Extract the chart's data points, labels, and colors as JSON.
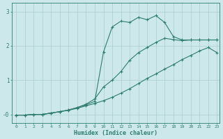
{
  "xlabel": "Humidex (Indice chaleur)",
  "background_color": "#cce8ea",
  "line_color": "#2e7d6e",
  "grid_color": "#aacdd0",
  "xlim": [
    -0.5,
    23.3
  ],
  "ylim": [
    -0.25,
    3.25
  ],
  "xticks": [
    0,
    1,
    2,
    3,
    4,
    5,
    6,
    7,
    8,
    9,
    10,
    11,
    12,
    13,
    14,
    15,
    16,
    17,
    18,
    19,
    20,
    21,
    22,
    23
  ],
  "yticks": [
    0,
    1,
    2,
    3
  ],
  "ytick_labels": [
    "-0",
    "1",
    "2",
    "3"
  ],
  "line1_x": [
    0,
    1,
    2,
    3,
    4,
    5,
    6,
    7,
    8,
    9,
    10,
    11,
    12,
    13,
    14,
    15,
    16,
    17,
    18,
    19,
    20,
    21,
    22,
    23
  ],
  "line1_y": [
    -0.02,
    -0.02,
    0.0,
    0.0,
    0.04,
    0.08,
    0.12,
    0.18,
    0.25,
    0.32,
    0.4,
    0.5,
    0.62,
    0.75,
    0.9,
    1.05,
    1.18,
    1.32,
    1.45,
    1.6,
    1.72,
    1.85,
    1.95,
    1.8
  ],
  "line2_x": [
    0,
    1,
    2,
    3,
    4,
    5,
    6,
    7,
    8,
    9,
    10,
    11,
    12,
    13,
    14,
    15,
    16,
    17,
    18,
    19,
    20,
    21,
    22,
    23
  ],
  "line2_y": [
    -0.02,
    -0.02,
    0.0,
    0.0,
    0.04,
    0.08,
    0.13,
    0.2,
    0.28,
    0.38,
    1.82,
    2.55,
    2.72,
    2.68,
    2.83,
    2.76,
    2.88,
    2.68,
    2.27,
    2.17,
    2.17,
    2.17,
    2.17,
    2.17
  ],
  "line3_x": [
    0,
    1,
    2,
    3,
    4,
    5,
    6,
    7,
    8,
    9,
    10,
    11,
    12,
    13,
    14,
    15,
    16,
    17,
    18,
    19,
    20,
    21,
    22,
    23
  ],
  "line3_y": [
    -0.02,
    -0.02,
    0.0,
    0.0,
    0.04,
    0.08,
    0.13,
    0.2,
    0.3,
    0.45,
    0.8,
    1.0,
    1.25,
    1.58,
    1.8,
    1.95,
    2.1,
    2.22,
    2.18,
    2.15,
    2.17,
    2.17,
    2.17,
    2.17
  ]
}
